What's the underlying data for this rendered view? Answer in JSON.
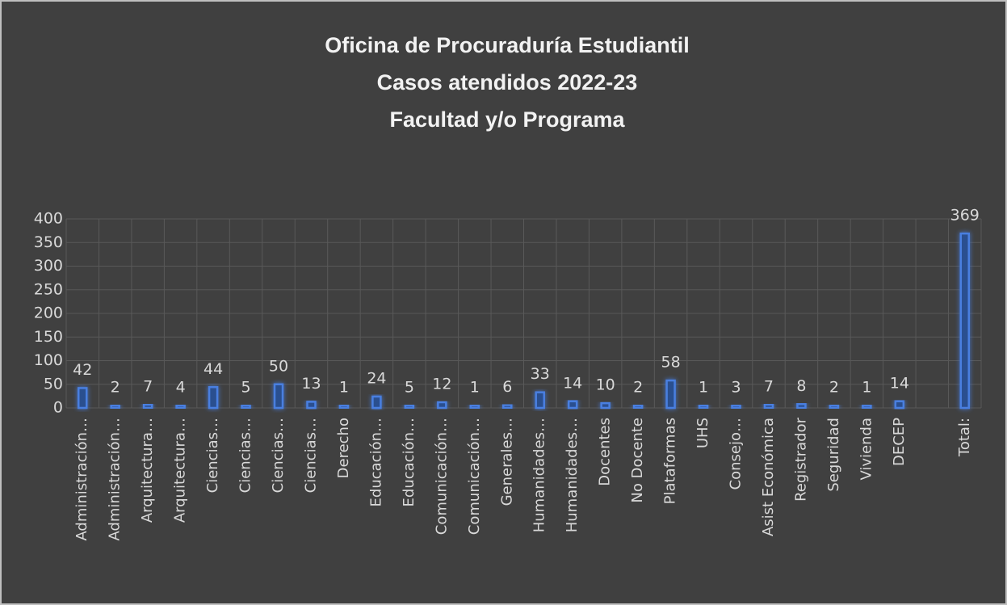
{
  "chart_data": {
    "type": "bar",
    "title": [
      "Oficina de Procuraduría Estudiantil",
      "Casos atendidos 2022-23",
      "Facultad y/o Programa"
    ],
    "categories": [
      "Administración…",
      "Administración…",
      "Arquitectura…",
      "Arquitectura…",
      "Ciencias…",
      "Ciencias…",
      "Ciencias…",
      "Ciencias…",
      "Derecho",
      "Educación…",
      "Educación…",
      "Comunicación…",
      "Comunicación…",
      "Generales…",
      "Humanidades…",
      "Humanidades…",
      "Docentes",
      "No Docente",
      "Plataformas",
      "UHS",
      "Consejo…",
      "Asist Económica",
      "Registrador",
      "Seguridad",
      "Vivienda",
      "DECEP",
      null,
      "Total:"
    ],
    "values": [
      42,
      2,
      7,
      4,
      44,
      5,
      50,
      13,
      1,
      24,
      5,
      12,
      1,
      6,
      33,
      14,
      10,
      2,
      58,
      1,
      3,
      7,
      8,
      2,
      1,
      14,
      null,
      369
    ],
    "color": "#4a7fe0",
    "ylim": [
      0,
      400
    ],
    "yticks": [
      0,
      50,
      100,
      150,
      200,
      250,
      300,
      350,
      400
    ],
    "grid": true
  }
}
